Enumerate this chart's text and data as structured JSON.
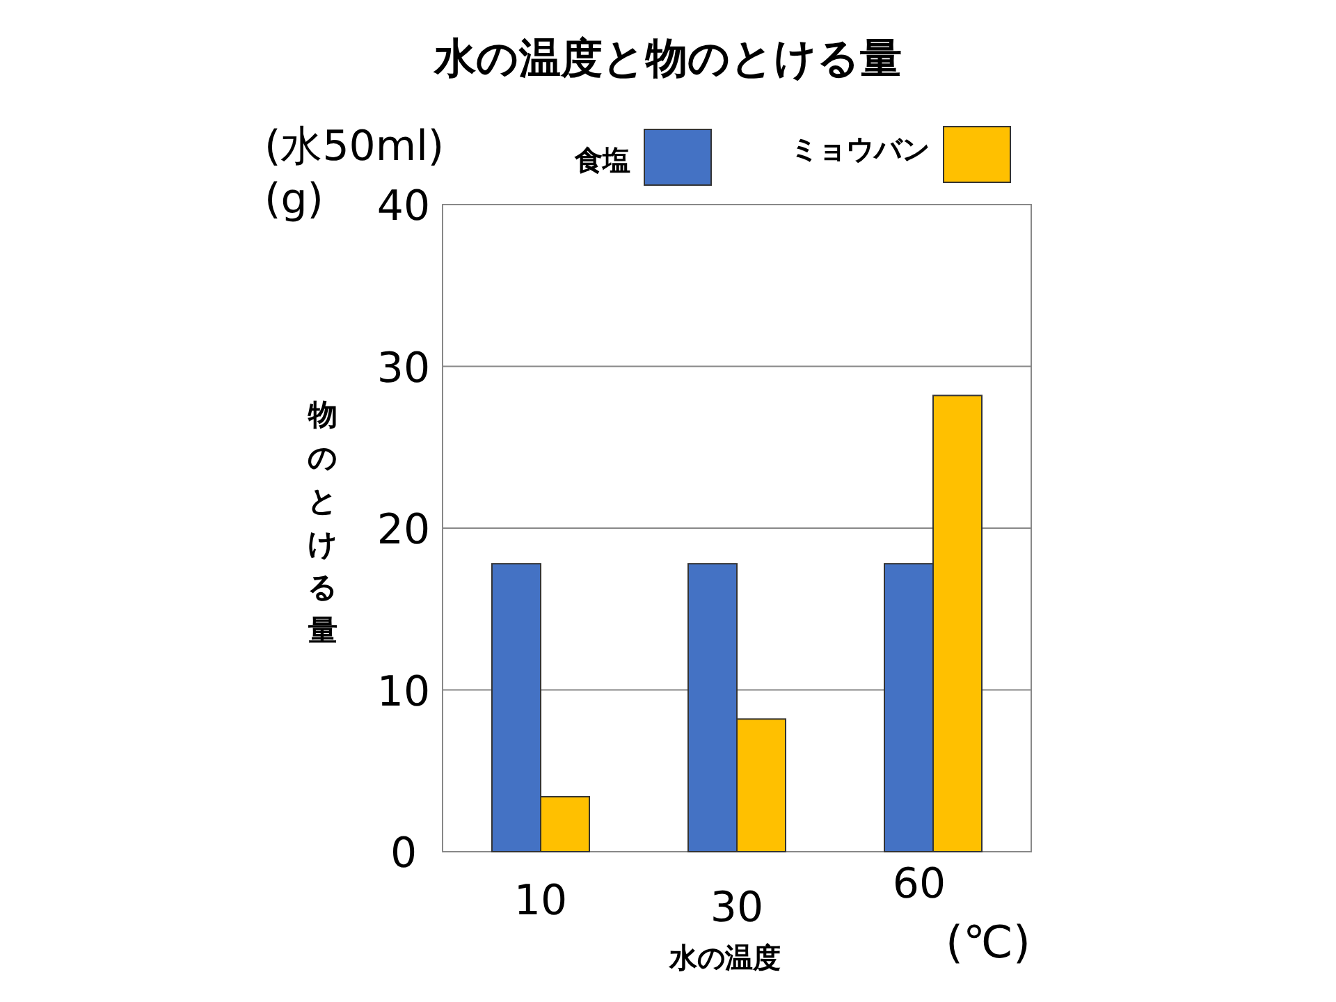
{
  "chart_data": {
    "type": "bar",
    "title": "水の温度と物のとける量",
    "xlabel": "水の温度",
    "ylabel": "物のとける量",
    "categories": [
      "10",
      "30",
      "60"
    ],
    "series": [
      {
        "name": "食塩",
        "color": "#4472c4",
        "values": [
          17.8,
          17.8,
          17.8
        ]
      },
      {
        "name": "ミョウバン",
        "color": "#ffc000",
        "values": [
          3.4,
          8.2,
          28.2
        ]
      }
    ],
    "ylim": [
      0,
      40
    ],
    "yticks": [
      0,
      10,
      20,
      30,
      40
    ],
    "grid": "y",
    "legend": "top",
    "annotations": [
      "(水50ml)",
      "(g)",
      "(℃)"
    ]
  }
}
